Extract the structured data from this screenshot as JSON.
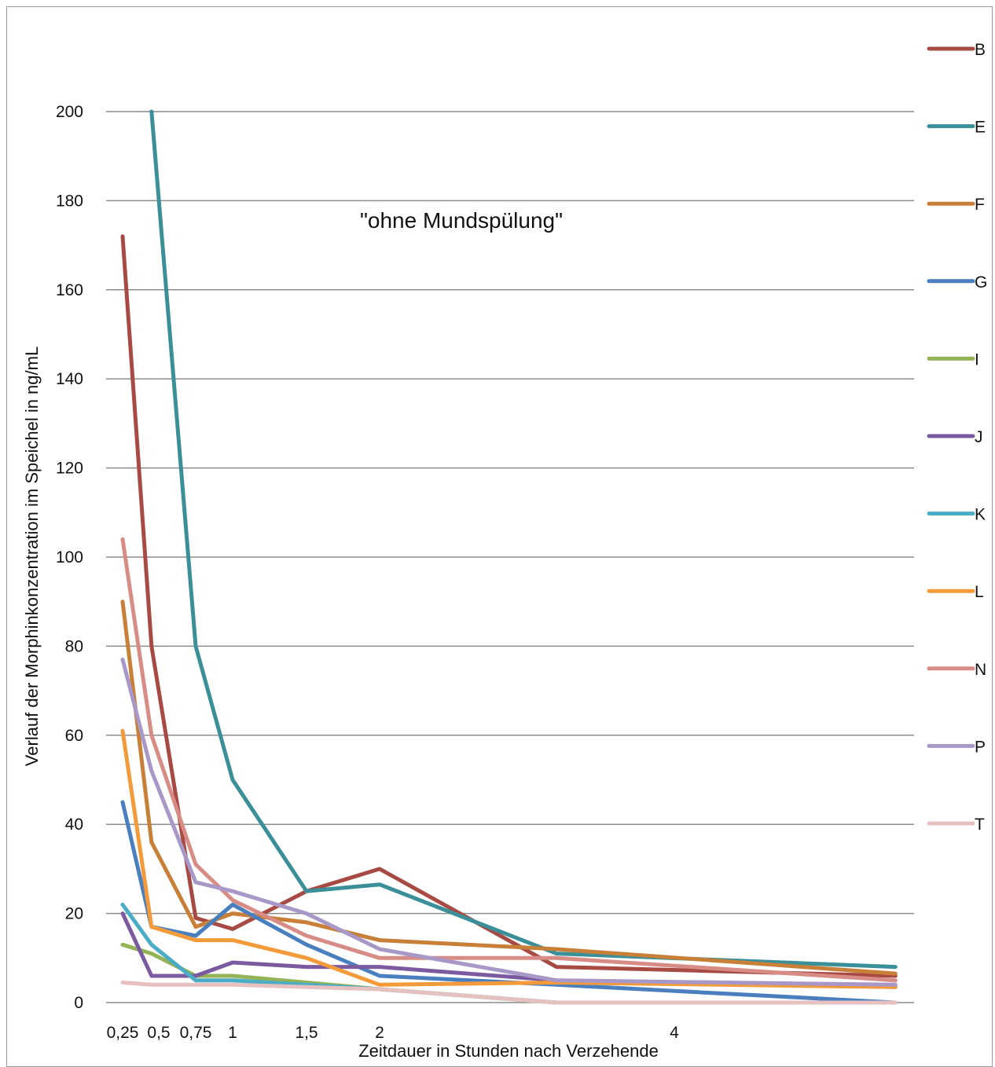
{
  "chart_data": {
    "type": "line",
    "annotation": "\"ohne Mundspülung\"",
    "xlabel": "Zeitdauer in Stunden nach Verzehende",
    "ylabel": "Verlauf der Morphinkonzentration im Speichel in ng/mL",
    "ylim": [
      0,
      200
    ],
    "grid": true,
    "legend_position": "right",
    "x_tick_labels": [
      "0,25",
      "0,5",
      "0,75",
      "1",
      "1,5",
      "2",
      "4"
    ],
    "x_tick_values": [
      0.25,
      0.5,
      0.75,
      1,
      1.5,
      2,
      4
    ],
    "y_ticks": [
      0,
      20,
      40,
      60,
      80,
      100,
      120,
      140,
      160,
      180,
      200
    ],
    "x": [
      0.25,
      0.45,
      0.75,
      1,
      1.5,
      2,
      3.2,
      5.5
    ],
    "series": [
      {
        "name": "B",
        "color": "#a84a44",
        "values": [
          172,
          80,
          19,
          16.5,
          25,
          30,
          8,
          6
        ]
      },
      {
        "name": "E",
        "color": "#3a8f99",
        "values": [
          null,
          200,
          80,
          50,
          25,
          26.5,
          11,
          8
        ]
      },
      {
        "name": "F",
        "color": "#c88038",
        "values": [
          90,
          36,
          17,
          20,
          18,
          14,
          12,
          6.5
        ]
      },
      {
        "name": "G",
        "color": "#4a7fbf",
        "values": [
          45,
          17,
          15,
          22,
          13,
          6,
          4,
          0
        ]
      },
      {
        "name": "I",
        "color": "#93b356",
        "values": [
          13,
          11,
          6,
          6,
          4.5,
          3,
          0,
          0
        ]
      },
      {
        "name": "J",
        "color": "#7b5aa0",
        "values": [
          20,
          6,
          6,
          9,
          8,
          8,
          5,
          3.5
        ]
      },
      {
        "name": "K",
        "color": "#4bacc6",
        "values": [
          22,
          13,
          5,
          5,
          4,
          3,
          0,
          0
        ]
      },
      {
        "name": "L",
        "color": "#f39a3a",
        "values": [
          61,
          17,
          14,
          14,
          10,
          4,
          4.5,
          3.5
        ]
      },
      {
        "name": "N",
        "color": "#d88c86",
        "values": [
          104,
          60,
          31,
          23,
          15,
          10,
          10,
          5
        ]
      },
      {
        "name": "P",
        "color": "#a898c8",
        "values": [
          77,
          52,
          27,
          25,
          20,
          12,
          5,
          4
        ]
      },
      {
        "name": "T",
        "color": "#e6c1bf",
        "values": [
          4.5,
          4,
          4,
          4,
          3.5,
          3,
          0,
          0
        ]
      }
    ]
  }
}
